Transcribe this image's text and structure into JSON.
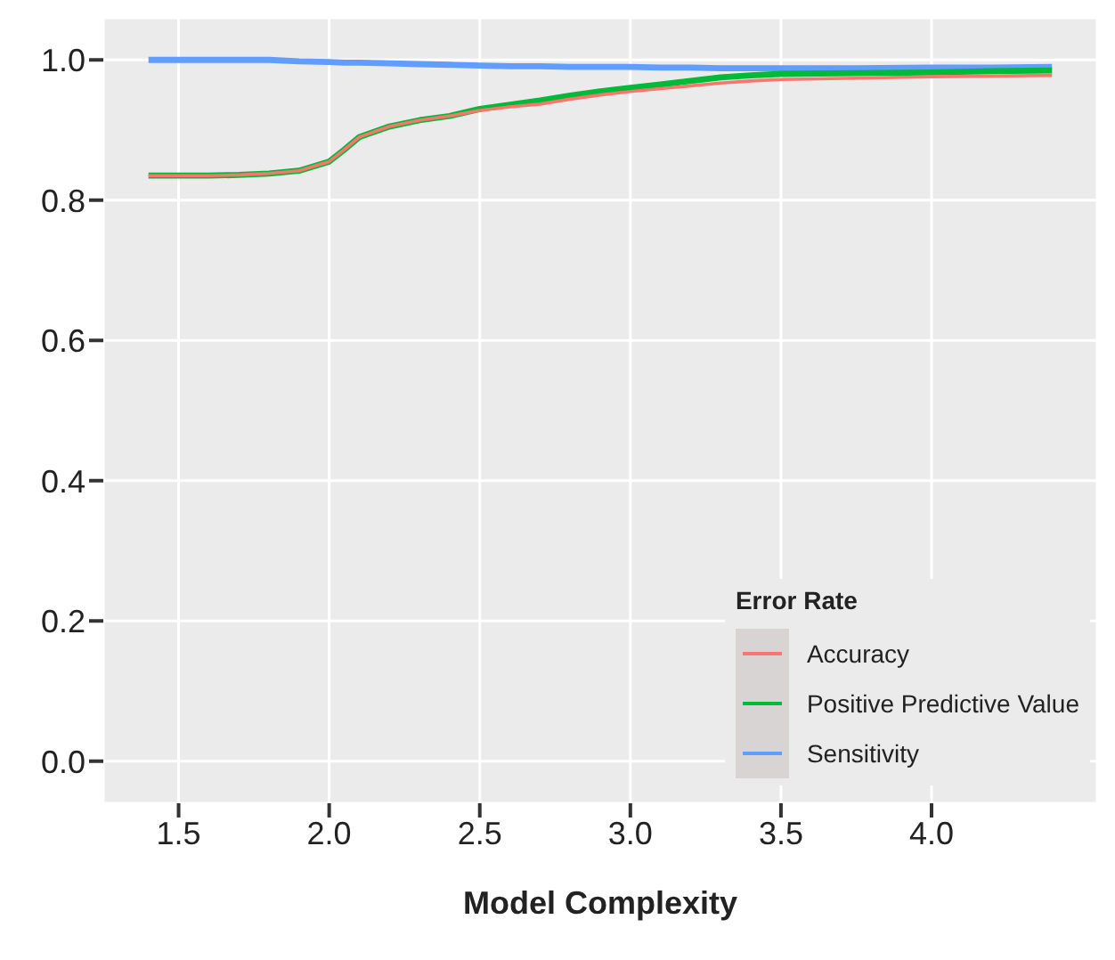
{
  "chart_data": {
    "type": "line",
    "xlabel": "Model Complexity",
    "legend_title": "Error Rate",
    "xlim": [
      1.25,
      4.55
    ],
    "xticks": [
      {
        "value": 1.5,
        "label": "1.5"
      },
      {
        "value": 2,
        "label": "2.0"
      },
      {
        "value": 2.5,
        "label": "2.5"
      },
      {
        "value": 3,
        "label": "3.0"
      },
      {
        "value": 3.5,
        "label": "3.5"
      },
      {
        "value": 4,
        "label": "4.0"
      }
    ],
    "ylim": [
      -0.06,
      1.06
    ],
    "yticks": [
      {
        "value": 0,
        "label": "0.0"
      },
      {
        "value": 0.2,
        "label": "0.2"
      },
      {
        "value": 0.4,
        "label": "0.4"
      },
      {
        "value": 0.6,
        "label": "0.6"
      },
      {
        "value": 0.8,
        "label": "0.8"
      },
      {
        "value": 1,
        "label": "1.0"
      }
    ],
    "grid": true,
    "legend": "bottom right",
    "marker": "none",
    "line_style": "solid",
    "x": [
      1.4,
      1.6,
      1.7,
      1.8,
      1.9,
      2.0,
      2.05,
      2.1,
      2.2,
      2.3,
      2.4,
      2.5,
      2.6,
      2.7,
      2.8,
      2.9,
      3.0,
      3.1,
      3.2,
      3.3,
      3.4,
      3.5,
      3.75,
      4.0,
      4.2,
      4.4
    ],
    "series": [
      {
        "name": "Accuracy",
        "color": "#f8766d",
        "values": [
          0.835,
          0.835,
          0.836,
          0.838,
          0.842,
          0.855,
          0.872,
          0.89,
          0.905,
          0.914,
          0.92,
          0.928,
          0.933,
          0.937,
          0.944,
          0.95,
          0.955,
          0.959,
          0.963,
          0.967,
          0.97,
          0.972,
          0.974,
          0.976,
          0.977,
          0.978
        ]
      },
      {
        "name": "Positive Predictive Value",
        "color": "#00ba38",
        "values": [
          0.835,
          0.835,
          0.836,
          0.838,
          0.842,
          0.855,
          0.872,
          0.89,
          0.905,
          0.914,
          0.92,
          0.93,
          0.936,
          0.942,
          0.949,
          0.955,
          0.96,
          0.965,
          0.97,
          0.975,
          0.978,
          0.98,
          0.981,
          0.982,
          0.984,
          0.985
        ]
      },
      {
        "name": "Sensitivity",
        "color": "#619cff",
        "values": [
          1.0,
          1.0,
          1.0,
          1.0,
          0.998,
          0.997,
          0.996,
          0.996,
          0.995,
          0.994,
          0.993,
          0.992,
          0.991,
          0.991,
          0.99,
          0.99,
          0.99,
          0.989,
          0.989,
          0.988,
          0.988,
          0.988,
          0.988,
          0.989,
          0.989,
          0.99
        ]
      }
    ]
  }
}
